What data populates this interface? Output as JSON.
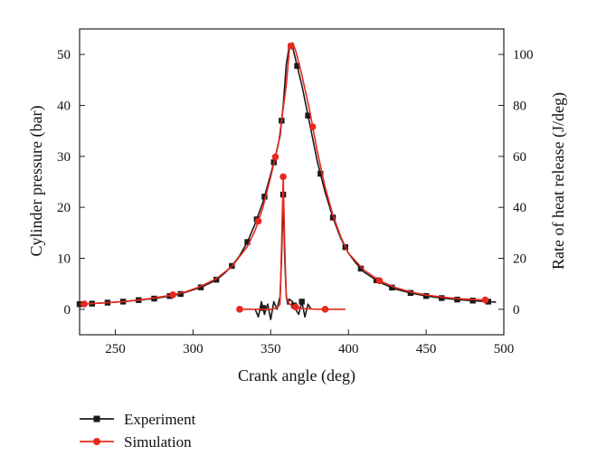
{
  "chart_data": {
    "type": "line",
    "xlabel": "Crank angle (deg)",
    "ylabel_left": "Cylinder pressure (bar)",
    "ylabel_right": "Rate of heat release (J/deg)",
    "xlim": [
      227,
      500
    ],
    "ylim_left": [
      -5,
      55
    ],
    "ylim_right": [
      -10,
      110
    ],
    "x_ticks": [
      250,
      300,
      350,
      400,
      450,
      500
    ],
    "y_left_ticks": [
      0,
      10,
      20,
      30,
      40,
      50
    ],
    "y_right_ticks": [
      0,
      20,
      40,
      60,
      80,
      100
    ],
    "legend": {
      "position": "below",
      "entries": [
        "Experiment",
        "Simulation"
      ]
    },
    "colors": {
      "Experiment": "#1a1a1a",
      "Simulation": "#e8281e"
    },
    "series": [
      {
        "name": "Experiment",
        "axis": "left",
        "marker": "square",
        "x": [
          227,
          235,
          245,
          255,
          265,
          275,
          285,
          292,
          300,
          305,
          310,
          315,
          320,
          325,
          330,
          335,
          340,
          345,
          350,
          353,
          356,
          358,
          360,
          362,
          364,
          366,
          368,
          370,
          372,
          375,
          380,
          385,
          390,
          395,
          400,
          405,
          410,
          420,
          430,
          440,
          450,
          460,
          470,
          480,
          490,
          495
        ],
        "values": [
          1.0,
          1.1,
          1.3,
          1.5,
          1.8,
          2.1,
          2.6,
          3.0,
          3.8,
          4.3,
          5.0,
          5.8,
          7.0,
          8.5,
          10.5,
          13.2,
          16.8,
          21.0,
          26.5,
          30.0,
          34.0,
          40.0,
          48.0,
          51.8,
          51.5,
          49.0,
          46.5,
          44.0,
          41.0,
          36.5,
          29.0,
          23.0,
          18.0,
          14.0,
          11.0,
          9.0,
          7.3,
          5.3,
          4.0,
          3.2,
          2.6,
          2.2,
          1.9,
          1.7,
          1.5,
          1.4
        ],
        "marker_x": [
          227,
          235,
          245,
          255,
          265,
          275,
          285,
          292,
          305,
          315,
          325,
          335,
          341,
          346,
          352,
          357,
          363,
          367,
          374,
          382,
          390,
          398,
          408,
          418,
          428,
          440,
          450,
          460,
          470,
          480,
          490
        ]
      },
      {
        "name": "Simulation",
        "axis": "left",
        "marker": "circle",
        "x": [
          227,
          240,
          255,
          270,
          285,
          295,
          305,
          315,
          325,
          335,
          340,
          345,
          350,
          355,
          360,
          362,
          364,
          366,
          370,
          375,
          380,
          385,
          390,
          395,
          400,
          410,
          420,
          430,
          440,
          450,
          460,
          470,
          480,
          490
        ],
        "values": [
          1.0,
          1.2,
          1.5,
          2.0,
          2.7,
          3.4,
          4.5,
          6.0,
          8.4,
          12.3,
          15.5,
          20.0,
          26.0,
          32.5,
          44.0,
          51.0,
          52.3,
          50.8,
          46.0,
          39.0,
          31.0,
          24.0,
          18.5,
          14.3,
          11.0,
          7.7,
          5.6,
          4.3,
          3.4,
          2.8,
          2.4,
          2.1,
          1.9,
          1.8
        ],
        "marker_x": [
          230,
          287,
          342,
          353,
          363,
          377,
          420,
          488
        ]
      },
      {
        "name": "Experiment",
        "axis": "right",
        "marker": "square",
        "x": [
          340,
          342,
          344,
          346,
          348,
          350,
          352,
          354,
          356,
          357,
          358,
          359,
          360,
          361,
          362,
          364,
          366,
          368,
          370,
          372,
          374,
          376
        ],
        "values": [
          0,
          -3,
          3,
          -2,
          2,
          -4,
          3,
          0,
          5,
          20,
          45,
          20,
          5,
          2,
          4,
          3,
          0,
          -2,
          3,
          -3,
          2,
          0
        ],
        "marker_x": [
          345,
          358,
          365,
          370
        ]
      },
      {
        "name": "Simulation",
        "axis": "right",
        "marker": "circle",
        "x": [
          330,
          340,
          350,
          354,
          356,
          357,
          358,
          359,
          360,
          362,
          365,
          370,
          380,
          385,
          398
        ],
        "values": [
          0,
          0,
          0,
          0.5,
          2,
          25,
          52,
          25,
          5,
          2,
          1,
          0.3,
          0,
          0,
          0
        ],
        "marker_x": [
          330,
          358,
          366,
          385
        ]
      }
    ]
  }
}
